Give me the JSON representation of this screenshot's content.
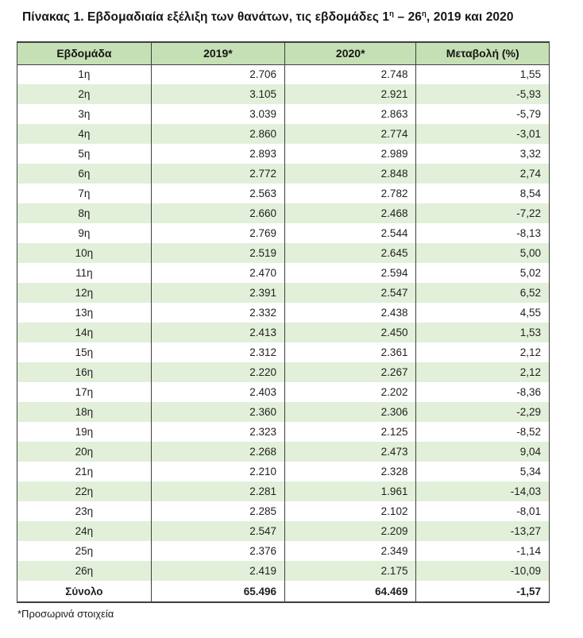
{
  "title": {
    "prefix": "Πίνακας 1. Εβδομαδιαία εξέλιξη των θανάτων, τις εβδομάδες 1",
    "sup1": "η",
    "mid": " – 26",
    "sup2": "η",
    "suffix": ", 2019 και 2020"
  },
  "table": {
    "headers": [
      "Εβδομάδα",
      "2019*",
      "2020*",
      "Μεταβολή (%)"
    ],
    "rows": [
      {
        "week": "1η",
        "y2019": "2.706",
        "y2020": "2.748",
        "change": "1,55"
      },
      {
        "week": "2η",
        "y2019": "3.105",
        "y2020": "2.921",
        "change": "-5,93"
      },
      {
        "week": "3η",
        "y2019": "3.039",
        "y2020": "2.863",
        "change": "-5,79"
      },
      {
        "week": "4η",
        "y2019": "2.860",
        "y2020": "2.774",
        "change": "-3,01"
      },
      {
        "week": "5η",
        "y2019": "2.893",
        "y2020": "2.989",
        "change": "3,32"
      },
      {
        "week": "6η",
        "y2019": "2.772",
        "y2020": "2.848",
        "change": "2,74"
      },
      {
        "week": "7η",
        "y2019": "2.563",
        "y2020": "2.782",
        "change": "8,54"
      },
      {
        "week": "8η",
        "y2019": "2.660",
        "y2020": "2.468",
        "change": "-7,22"
      },
      {
        "week": "9η",
        "y2019": "2.769",
        "y2020": "2.544",
        "change": "-8,13"
      },
      {
        "week": "10η",
        "y2019": "2.519",
        "y2020": "2.645",
        "change": "5,00"
      },
      {
        "week": "11η",
        "y2019": "2.470",
        "y2020": "2.594",
        "change": "5,02"
      },
      {
        "week": "12η",
        "y2019": "2.391",
        "y2020": "2.547",
        "change": "6,52"
      },
      {
        "week": "13η",
        "y2019": "2.332",
        "y2020": "2.438",
        "change": "4,55"
      },
      {
        "week": "14η",
        "y2019": "2.413",
        "y2020": "2.450",
        "change": "1,53"
      },
      {
        "week": "15η",
        "y2019": "2.312",
        "y2020": "2.361",
        "change": "2,12"
      },
      {
        "week": "16η",
        "y2019": "2.220",
        "y2020": "2.267",
        "change": "2,12"
      },
      {
        "week": "17η",
        "y2019": "2.403",
        "y2020": "2.202",
        "change": "-8,36"
      },
      {
        "week": "18η",
        "y2019": "2.360",
        "y2020": "2.306",
        "change": "-2,29"
      },
      {
        "week": "19η",
        "y2019": "2.323",
        "y2020": "2.125",
        "change": "-8,52"
      },
      {
        "week": "20η",
        "y2019": "2.268",
        "y2020": "2.473",
        "change": "9,04"
      },
      {
        "week": "21η",
        "y2019": "2.210",
        "y2020": "2.328",
        "change": "5,34"
      },
      {
        "week": "22η",
        "y2019": "2.281",
        "y2020": "1.961",
        "change": "-14,03"
      },
      {
        "week": "23η",
        "y2019": "2.285",
        "y2020": "2.102",
        "change": "-8,01"
      },
      {
        "week": "24η",
        "y2019": "2.547",
        "y2020": "2.209",
        "change": "-13,27"
      },
      {
        "week": "25η",
        "y2019": "2.376",
        "y2020": "2.349",
        "change": "-1,14"
      },
      {
        "week": "26η",
        "y2019": "2.419",
        "y2020": "2.175",
        "change": "-10,09"
      }
    ],
    "total": {
      "week": "Σύνολο",
      "y2019": "65.496",
      "y2020": "64.469",
      "change": "-1,57"
    }
  },
  "footnote": "*Προσωρινά στοιχεία",
  "colors": {
    "header_bg": "#c5e0b4",
    "band_bg": "#e2efd9",
    "border": "#3f3f3f"
  }
}
